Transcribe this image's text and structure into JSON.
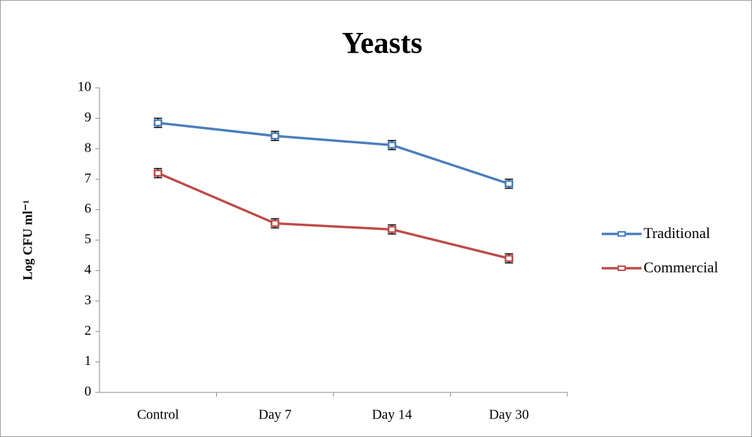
{
  "chart_data": {
    "type": "line",
    "title": "Yeasts",
    "y_label": "Log CFU ml⁻¹",
    "categories": [
      "Control",
      "Day 7",
      "Day 14",
      "Day 30"
    ],
    "series": [
      {
        "name": "Traditional",
        "color": "#4a7ebb",
        "values": [
          8.85,
          8.42,
          8.12,
          6.85
        ],
        "errors": [
          0.15,
          0.15,
          0.15,
          0.15
        ]
      },
      {
        "name": "Commercial",
        "color": "#be4b48",
        "values": [
          7.2,
          5.55,
          5.35,
          4.4
        ],
        "errors": [
          0.15,
          0.15,
          0.15,
          0.15
        ]
      }
    ],
    "ylim": [
      0,
      10
    ],
    "yticks": [
      0,
      1,
      2,
      3,
      4,
      5,
      6,
      7,
      8,
      9,
      10
    ],
    "grid": false,
    "legend": "right"
  }
}
